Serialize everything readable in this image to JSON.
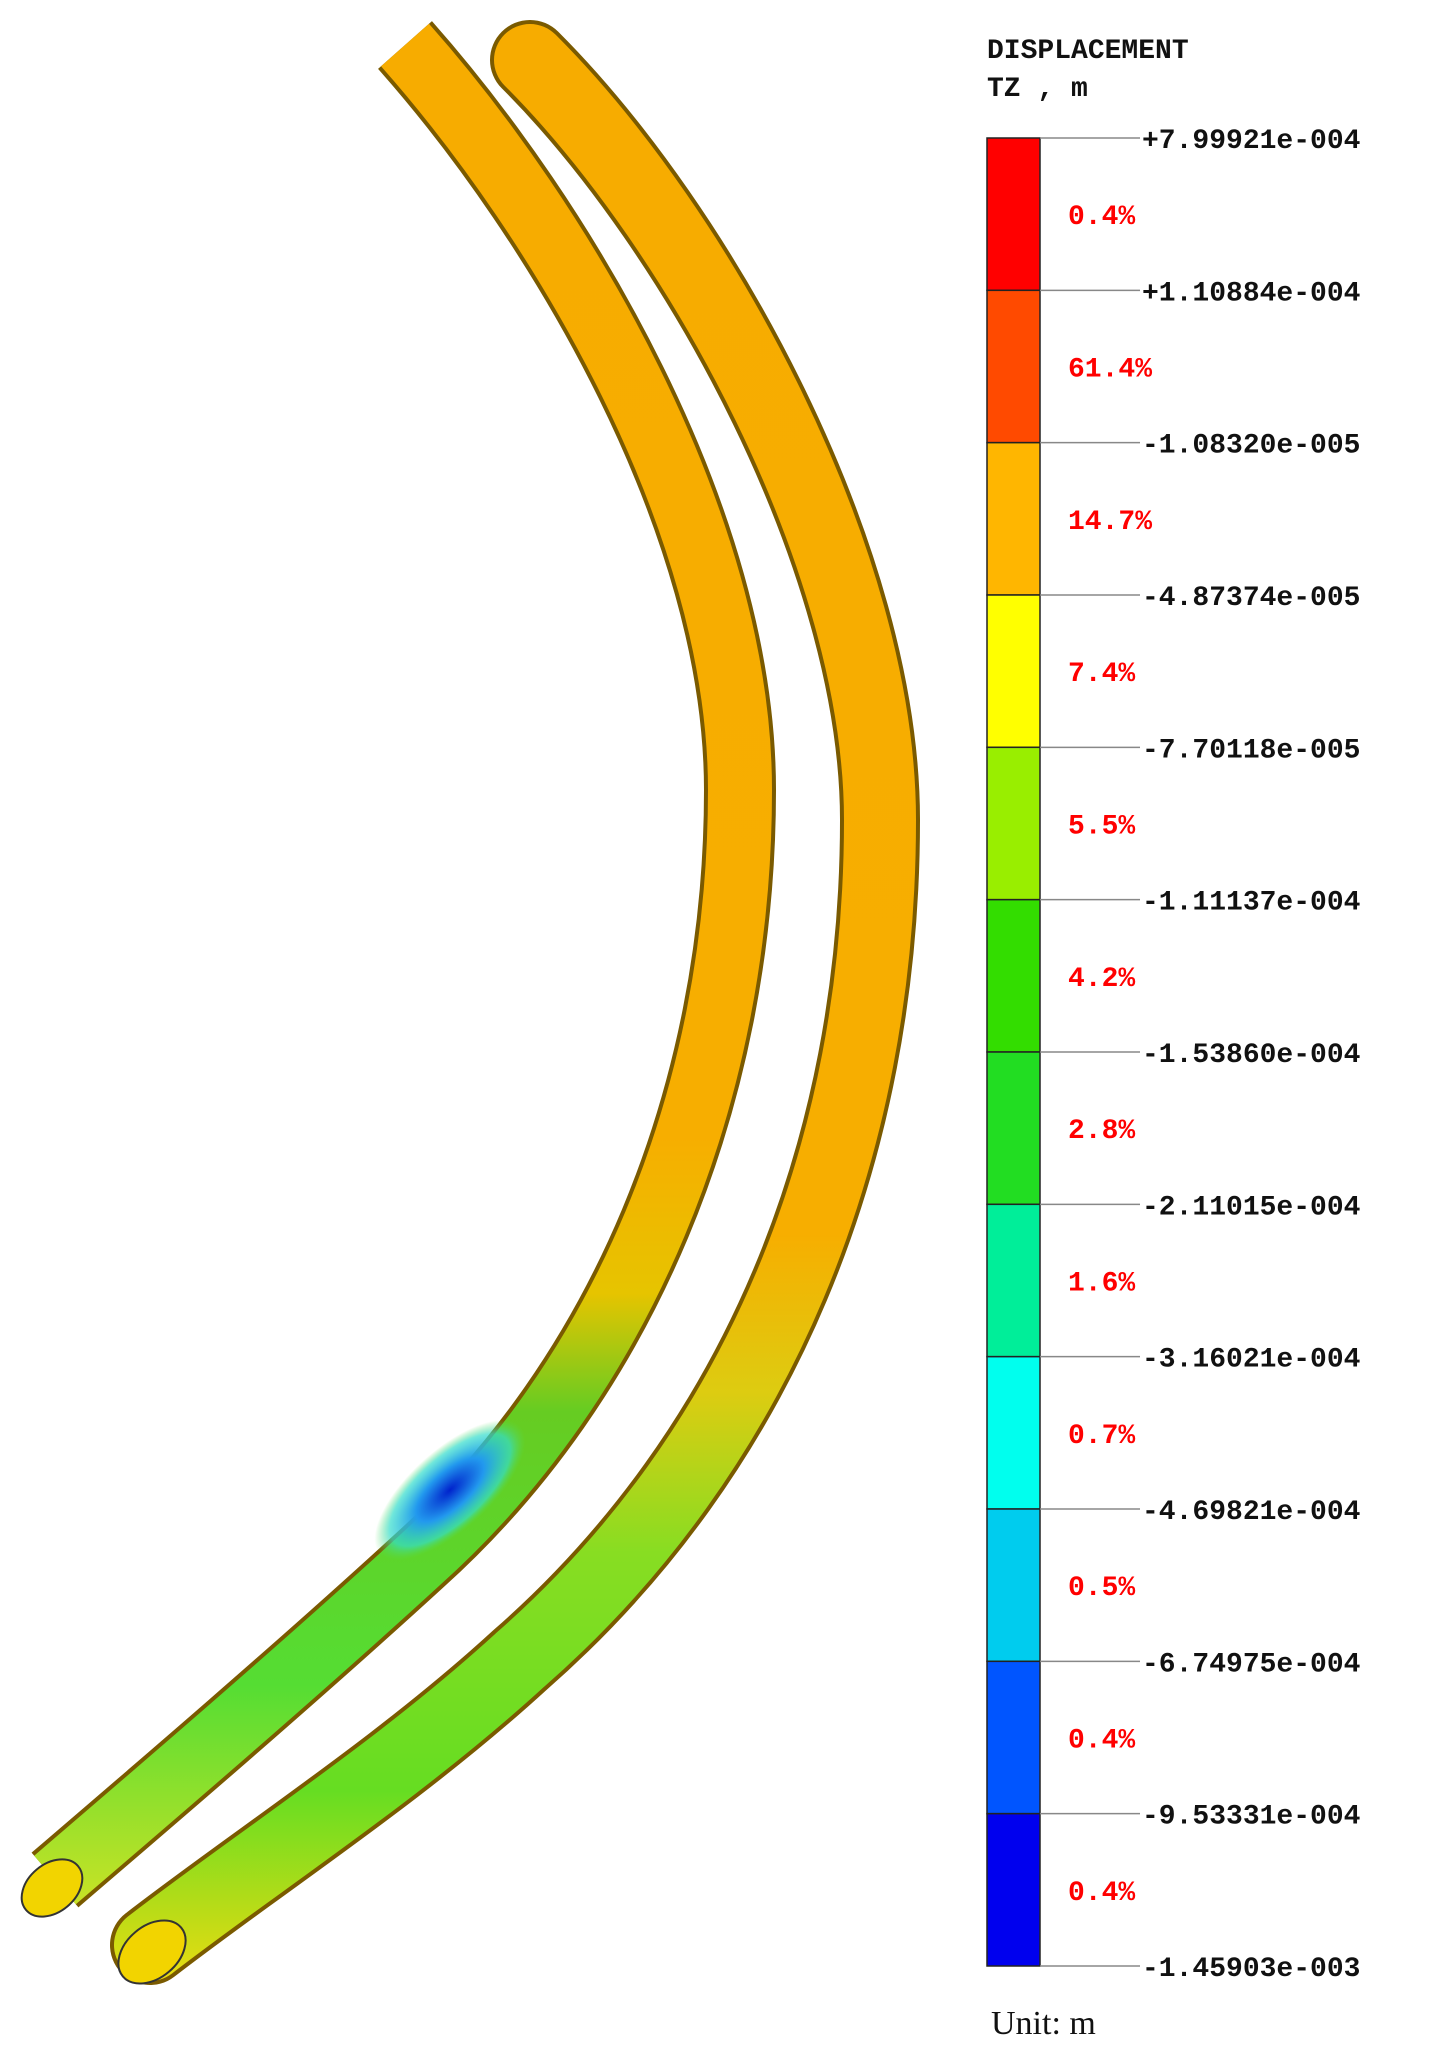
{
  "legend": {
    "title": "DISPLACEMENT",
    "subtitle": "TZ , m",
    "boundaries": [
      "+7.99921e-004",
      "+1.10884e-004",
      "-1.08320e-005",
      "-4.87374e-005",
      "-7.70118e-005",
      "-1.11137e-004",
      "-1.53860e-004",
      "-2.11015e-004",
      "-3.16021e-004",
      "-4.69821e-004",
      "-6.74975e-004",
      "-9.53331e-004",
      "-1.45903e-003"
    ],
    "bands": [
      {
        "percent": "0.4%",
        "color": "#ff0000"
      },
      {
        "percent": "61.4%",
        "color": "#ff4a00"
      },
      {
        "percent": "14.7%",
        "color": "#ffb600"
      },
      {
        "percent": "7.4%",
        "color": "#ffff00"
      },
      {
        "percent": "5.5%",
        "color": "#99ee00"
      },
      {
        "percent": "4.2%",
        "color": "#33dd00"
      },
      {
        "percent": "2.8%",
        "color": "#22dd22"
      },
      {
        "percent": "1.6%",
        "color": "#00ee99"
      },
      {
        "percent": "0.7%",
        "color": "#00ffee"
      },
      {
        "percent": "0.5%",
        "color": "#00ccee"
      },
      {
        "percent": "0.4%",
        "color": "#0055ff"
      },
      {
        "percent": "0.4%",
        "color": "#0000ee"
      }
    ],
    "unit": "Unit: m"
  }
}
